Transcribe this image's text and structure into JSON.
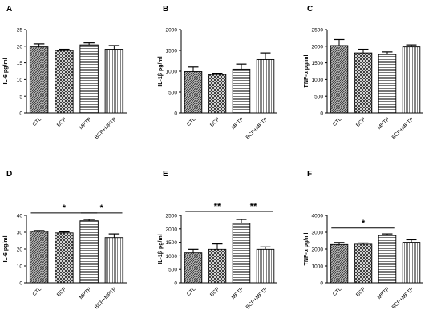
{
  "chart_data": [
    {
      "panel": "A",
      "type": "bar",
      "ylabel": "IL-6 pg/ml",
      "ylim": [
        0,
        25
      ],
      "yticks": [
        0,
        5,
        10,
        15,
        20,
        25
      ],
      "categories": [
        "CTL",
        "BCP",
        "MPTP",
        "BCP+MPTP"
      ],
      "values": [
        19.8,
        18.7,
        20.4,
        19.1
      ],
      "errors": [
        0.9,
        0.4,
        0.6,
        1.1
      ],
      "significance": []
    },
    {
      "panel": "B",
      "type": "bar",
      "ylabel": "IL-1β pg/ml",
      "ylim": [
        0,
        2000
      ],
      "yticks": [
        0,
        500,
        1000,
        1500,
        2000
      ],
      "categories": [
        "CTL",
        "BCP",
        "MPTP",
        "BCP+MPTP"
      ],
      "values": [
        990,
        920,
        1050,
        1280
      ],
      "errors": [
        110,
        30,
        120,
        160
      ],
      "significance": []
    },
    {
      "panel": "C",
      "type": "bar",
      "ylabel": "TNF-α pg/ml",
      "ylim": [
        0,
        2500
      ],
      "yticks": [
        0,
        500,
        1000,
        1500,
        2000,
        2500
      ],
      "categories": [
        "CTL",
        "BCP",
        "MPTP",
        "BCP+MPTP"
      ],
      "values": [
        2020,
        1800,
        1760,
        1980
      ],
      "errors": [
        180,
        110,
        70,
        60
      ],
      "significance": []
    },
    {
      "panel": "D",
      "type": "bar",
      "ylabel": "IL-6 pg/ml",
      "ylim": [
        0,
        40
      ],
      "yticks": [
        0,
        10,
        20,
        30,
        40
      ],
      "categories": [
        "CTL",
        "BCP",
        "MPTP",
        "BCP+MPTP"
      ],
      "values": [
        30.5,
        29.6,
        36.8,
        26.8
      ],
      "errors": [
        0.5,
        0.6,
        0.8,
        2.2
      ],
      "significance": [
        {
          "from": 0,
          "to": 2,
          "y": 41.5,
          "label": "*"
        },
        {
          "from": 2,
          "to": 3,
          "y": 41.5,
          "label": "*"
        }
      ]
    },
    {
      "panel": "E",
      "type": "bar",
      "ylabel": "IL-1β pg/ml",
      "ylim": [
        0,
        2500
      ],
      "yticks": [
        0,
        500,
        1000,
        1500,
        2000,
        2500
      ],
      "categories": [
        "CTL",
        "BCP",
        "MPTP",
        "BCP+MPTP"
      ],
      "values": [
        1110,
        1240,
        2200,
        1240
      ],
      "errors": [
        130,
        200,
        150,
        90
      ],
      "significance": [
        {
          "from": 0,
          "to": 2,
          "y": 2650,
          "label": "**"
        },
        {
          "from": 2,
          "to": 3,
          "y": 2650,
          "label": "**"
        }
      ]
    },
    {
      "panel": "F",
      "type": "bar",
      "ylabel": "TNF-α pg/ml",
      "ylim": [
        0,
        4000
      ],
      "yticks": [
        0,
        1000,
        2000,
        3000,
        4000
      ],
      "categories": [
        "CTL",
        "BCP",
        "MPTP",
        "BCP+MPTP"
      ],
      "values": [
        2270,
        2290,
        2820,
        2400
      ],
      "errors": [
        120,
        70,
        80,
        150
      ],
      "significance": [
        {
          "from": 0,
          "to": 2,
          "y": 3250,
          "label": "*"
        }
      ]
    }
  ]
}
